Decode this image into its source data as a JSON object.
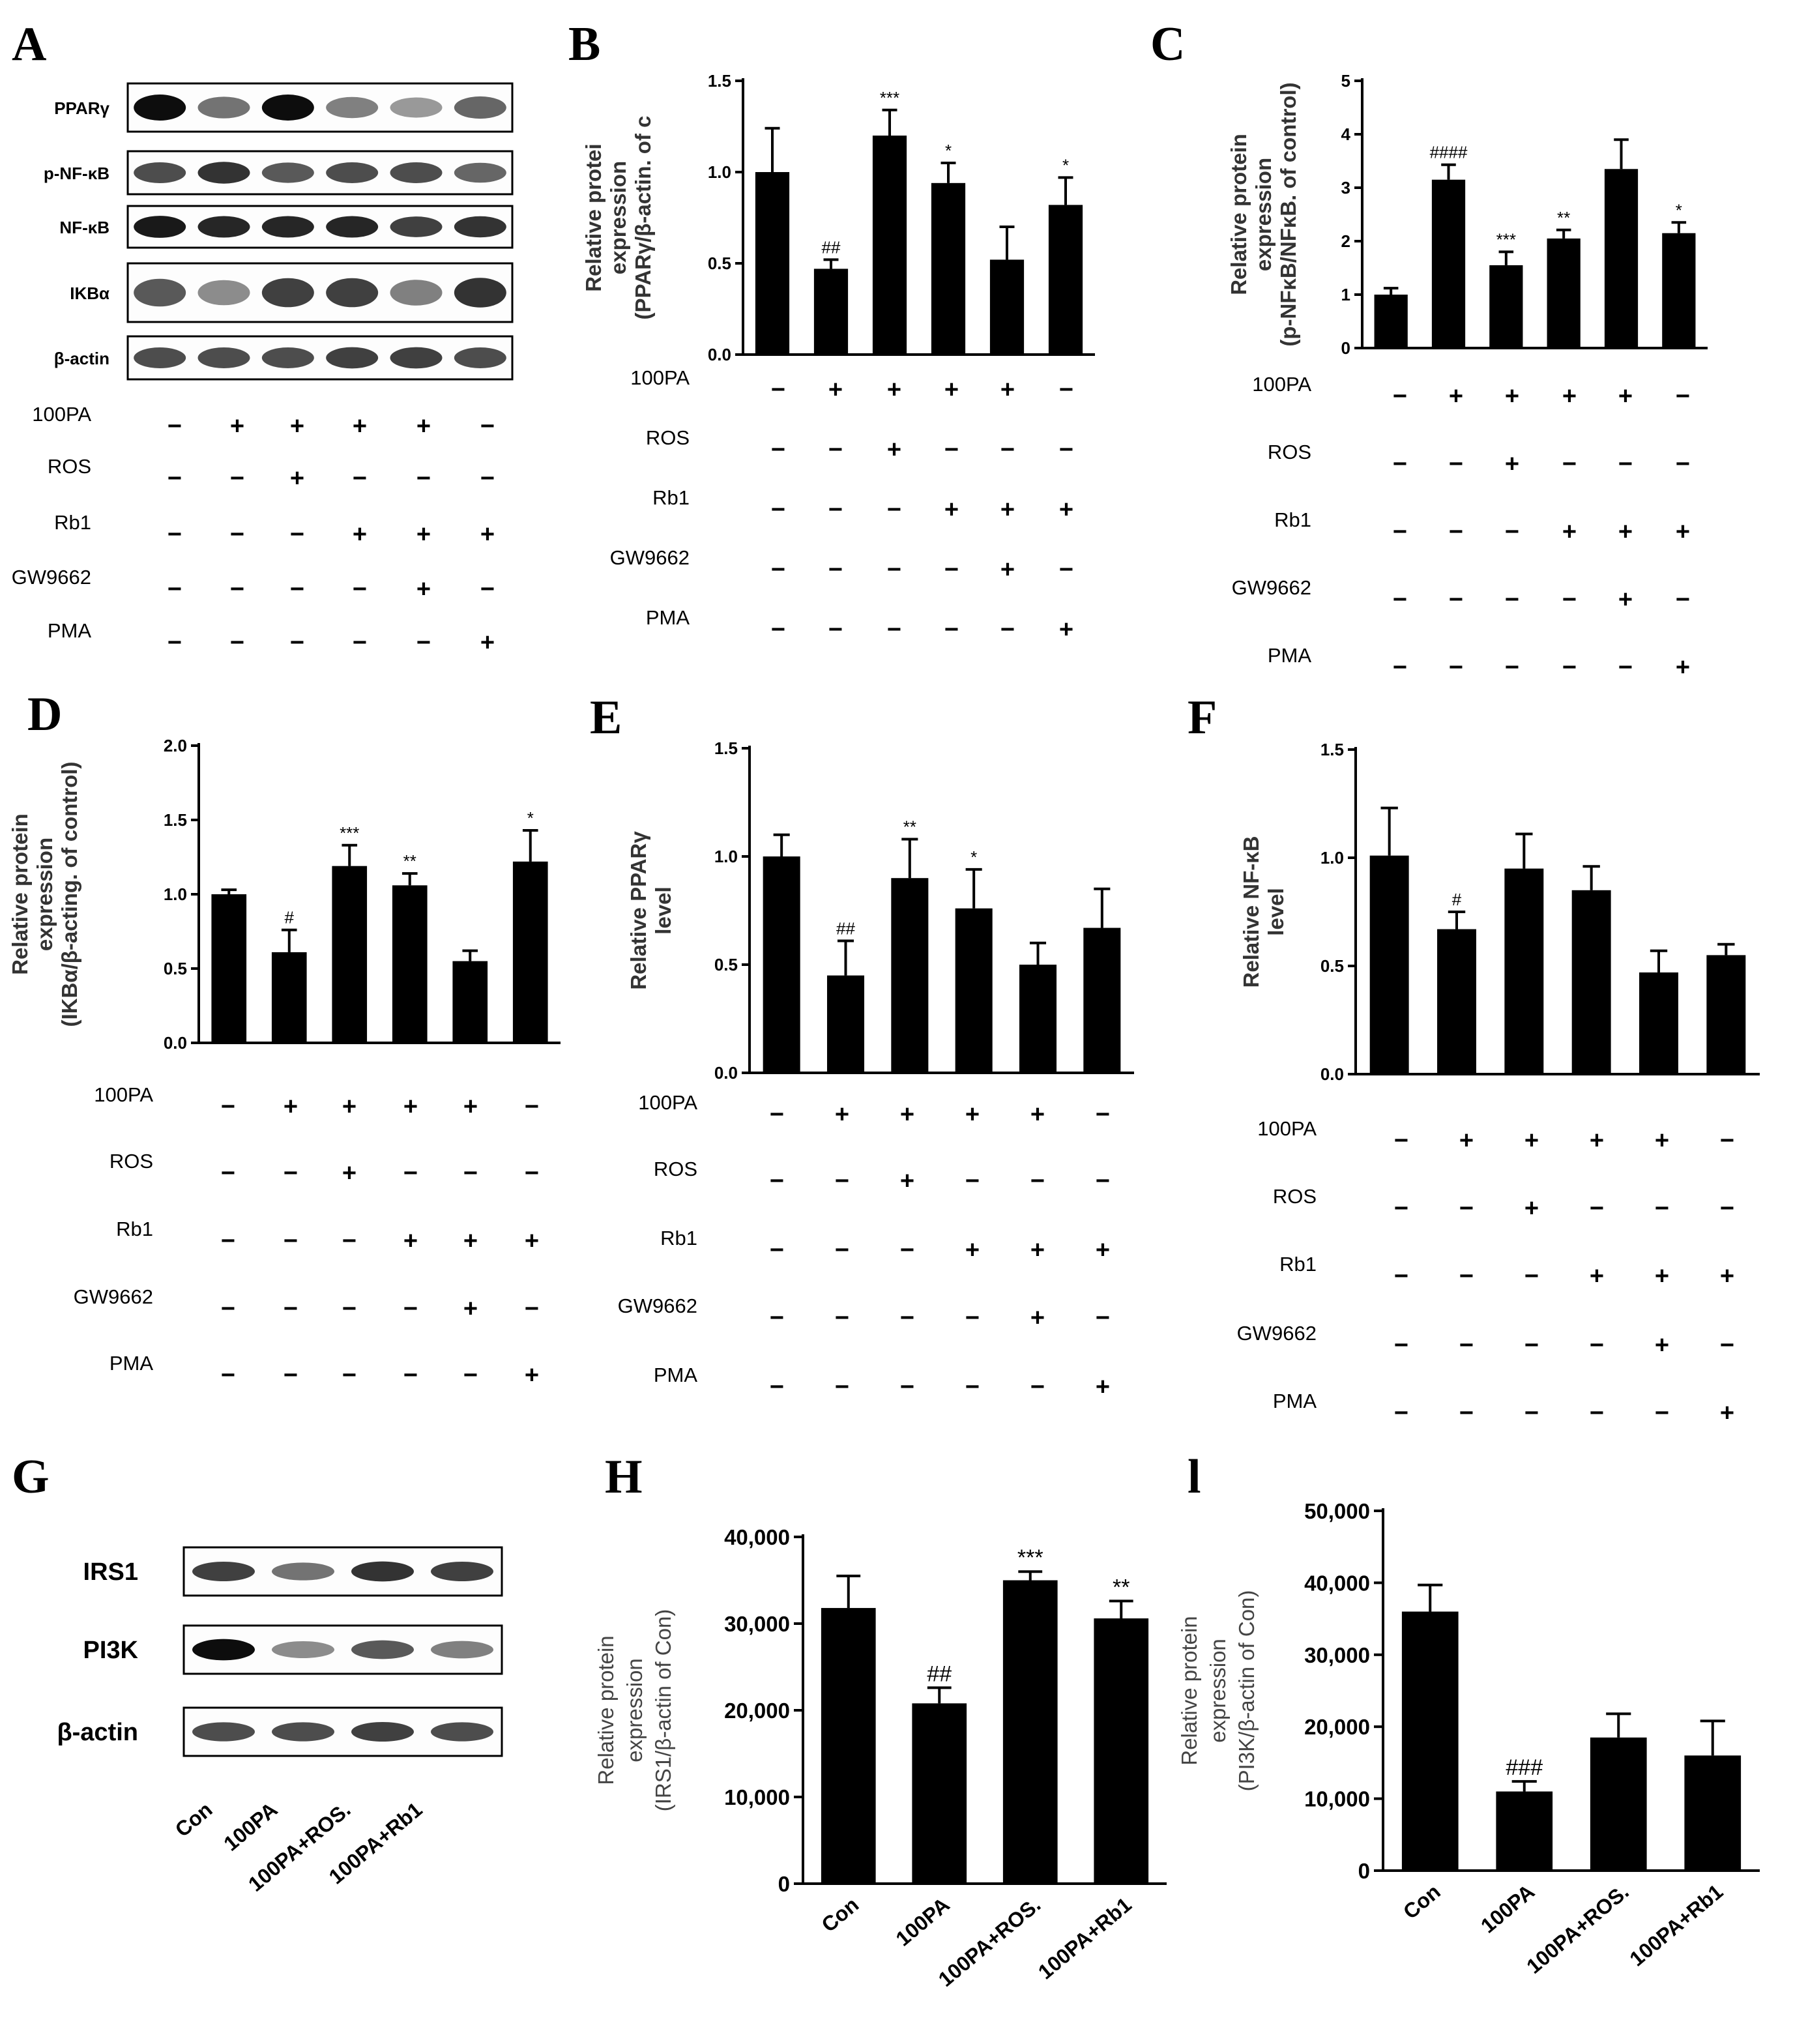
{
  "panel_labels": {
    "A": "A",
    "B": "B",
    "C": "C",
    "D": "D",
    "E": "E",
    "F": "F",
    "G": "G",
    "H": "H",
    "I": "l"
  },
  "treatments": {
    "names": [
      "100PA",
      "ROS",
      "Rb1",
      "GW9662",
      "PMA"
    ],
    "matrix": [
      [
        "−",
        "+",
        "+",
        "+",
        "+",
        "−"
      ],
      [
        "−",
        "−",
        "+",
        "−",
        "−",
        "−"
      ],
      [
        "−",
        "−",
        "−",
        "+",
        "+",
        "+"
      ],
      [
        "−",
        "−",
        "−",
        "−",
        "+",
        "−"
      ],
      [
        "−",
        "−",
        "−",
        "−",
        "−",
        "+"
      ]
    ]
  },
  "blot_A": {
    "labels": [
      "PPARγ",
      "p-NF-κB",
      "NF-κB",
      "IKBα",
      "β-actin"
    ],
    "band_intensity": [
      [
        0.95,
        0.55,
        0.95,
        0.5,
        0.4,
        0.6
      ],
      [
        0.7,
        0.8,
        0.65,
        0.7,
        0.7,
        0.6
      ],
      [
        0.9,
        0.85,
        0.85,
        0.85,
        0.75,
        0.8
      ],
      [
        0.65,
        0.45,
        0.75,
        0.75,
        0.5,
        0.8
      ],
      [
        0.7,
        0.7,
        0.7,
        0.75,
        0.75,
        0.7
      ]
    ]
  },
  "blot_G": {
    "labels": [
      "IRS1",
      "PI3K",
      "β-actin"
    ],
    "lanes": [
      "Con",
      "100PA",
      "100PA+ROS.",
      "100PA+Rb1"
    ],
    "band_intensity": [
      [
        0.75,
        0.55,
        0.8,
        0.75
      ],
      [
        0.95,
        0.45,
        0.65,
        0.5
      ],
      [
        0.7,
        0.7,
        0.75,
        0.7
      ]
    ]
  },
  "chart_data": [
    {
      "id": "B",
      "type": "bar",
      "ylabel": "Relative protei expression (PPARγ/β-actin. of c",
      "ylim": [
        0,
        1.5
      ],
      "ticks": [
        "0.0",
        "0.5",
        "1.0",
        "1.5"
      ],
      "values": [
        1.0,
        0.47,
        1.2,
        0.94,
        0.52,
        0.82
      ],
      "errors": [
        0.24,
        0.05,
        0.14,
        0.11,
        0.18,
        0.15
      ],
      "sig": [
        "",
        "##",
        "***",
        "*",
        "",
        "*"
      ]
    },
    {
      "id": "C",
      "type": "bar",
      "ylabel": "Relative protein expression (p-NFκB/NFκB. of control)",
      "ylim": [
        0,
        5
      ],
      "ticks": [
        "0",
        "1",
        "2",
        "3",
        "4",
        "5"
      ],
      "values": [
        1.0,
        3.15,
        1.55,
        2.05,
        3.35,
        2.15
      ],
      "errors": [
        0.12,
        0.28,
        0.25,
        0.16,
        0.55,
        0.2
      ],
      "sig": [
        "",
        "####",
        "***",
        "**",
        "",
        "*"
      ]
    },
    {
      "id": "D",
      "type": "bar",
      "ylabel": "Relative protein expression (IKBα/β-acting. of control)",
      "ylim": [
        0,
        2.0
      ],
      "ticks": [
        "0.0",
        "0.5",
        "1.0",
        "1.5",
        "2.0"
      ],
      "values": [
        1.0,
        0.61,
        1.19,
        1.06,
        0.55,
        1.22
      ],
      "errors": [
        0.03,
        0.15,
        0.14,
        0.08,
        0.07,
        0.21
      ],
      "sig": [
        "",
        "#",
        "***",
        "**",
        "",
        "*"
      ]
    },
    {
      "id": "E",
      "type": "bar",
      "ylabel": "Relative PPARγ level",
      "ylim": [
        0,
        1.5
      ],
      "ticks": [
        "0.0",
        "0.5",
        "1.0",
        "1.5"
      ],
      "values": [
        1.0,
        0.45,
        0.9,
        0.76,
        0.5,
        0.67
      ],
      "errors": [
        0.1,
        0.16,
        0.18,
        0.18,
        0.1,
        0.18
      ],
      "sig": [
        "",
        "##",
        "**",
        "*",
        "",
        ""
      ]
    },
    {
      "id": "F",
      "type": "bar",
      "ylabel": "Relative NF-κB level",
      "ylim": [
        0,
        1.5
      ],
      "ticks": [
        "0.0",
        "0.5",
        "1.0",
        "1.5"
      ],
      "values": [
        1.01,
        0.67,
        0.95,
        0.85,
        0.47,
        0.55
      ],
      "errors": [
        0.22,
        0.08,
        0.16,
        0.11,
        0.1,
        0.05
      ],
      "sig": [
        "",
        "#",
        "",
        "",
        "",
        ""
      ]
    },
    {
      "id": "H",
      "type": "bar",
      "ylabel": "Relative protein expression (IRS1/β-actin of Con)",
      "ylim": [
        0,
        40000
      ],
      "ticks": [
        "0",
        "10,000",
        "20,000",
        "30,000",
        "40,000"
      ],
      "categories": [
        "Con",
        "100PA",
        "100PA+ROS.",
        "100PA+Rb1"
      ],
      "values": [
        31800,
        20800,
        35000,
        30600
      ],
      "errors": [
        3700,
        1800,
        1000,
        2000
      ],
      "sig": [
        "",
        "##",
        "***",
        "**"
      ]
    },
    {
      "id": "I",
      "type": "bar",
      "ylabel": "Relative protein expression (PI3K/β-actin of Con)",
      "ylim": [
        0,
        50000
      ],
      "ticks": [
        "0",
        "10,000",
        "20,000",
        "30,000",
        "40,000",
        "50,000"
      ],
      "categories": [
        "Con",
        "100PA",
        "100PA+ROS.",
        "100PA+Rb1"
      ],
      "values": [
        36000,
        11000,
        18500,
        16000
      ],
      "errors": [
        3700,
        1400,
        3300,
        4800
      ],
      "sig": [
        "",
        "###",
        "",
        ""
      ]
    }
  ]
}
